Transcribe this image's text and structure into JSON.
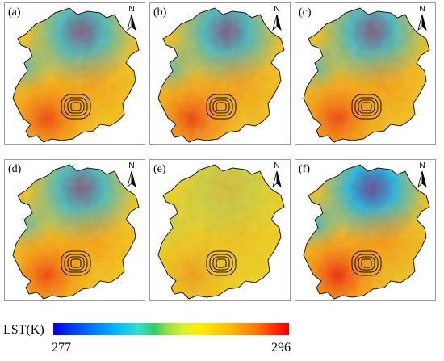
{
  "panels": [
    {
      "label": "(a)",
      "north": "N",
      "base": "#f4c21a",
      "tint": "#e9be22"
    },
    {
      "label": "(b)",
      "north": "N",
      "base": "#f2c01c",
      "tint": "#e9be22"
    },
    {
      "label": "(c)",
      "north": "N",
      "base": "#f3bf1a",
      "tint": "#e4c02a"
    },
    {
      "label": "(d)",
      "north": "N",
      "base": "#f4c418",
      "tint": "#e8c323"
    },
    {
      "label": "(e)",
      "north": "N",
      "base": "#efd21c",
      "tint": "#f2d82a"
    },
    {
      "label": "(f)",
      "north": "N",
      "base": "#f1c01d",
      "tint": "#e8bc20"
    }
  ],
  "legend": {
    "title": "LST(K)",
    "min": "277",
    "max": "296"
  },
  "colors": {
    "cold": "#0000e6",
    "cool": "#00b4ff",
    "mid": "#ffee00",
    "warm": "#ff7700",
    "hot": "#ee0000",
    "boundary": "#1a1a1a"
  }
}
